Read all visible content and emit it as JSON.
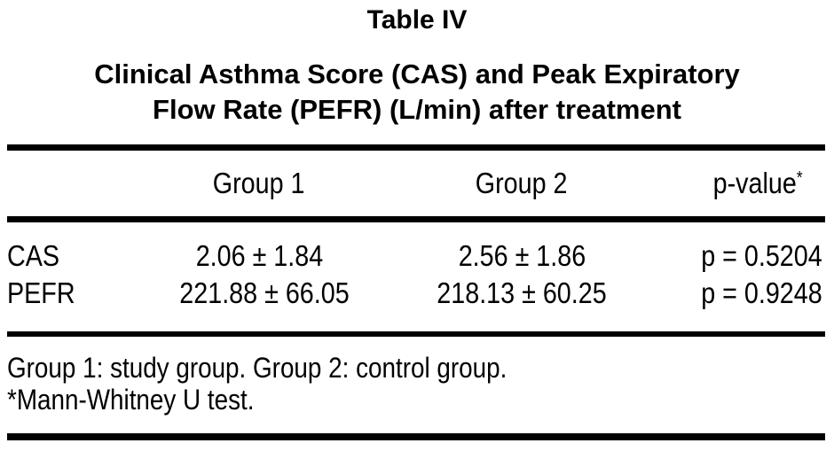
{
  "page": {
    "title": "Table IV",
    "subtitle_line1": "Clinical Asthma Score (CAS) and Peak Expiratory",
    "subtitle_line2": "Flow Rate (PEFR) (L/min) after treatment"
  },
  "table": {
    "columns": {
      "col1": "",
      "col2": "Group 1",
      "col3": "Group 2",
      "col4": "p-value",
      "col4_sup": "*"
    },
    "rows": [
      {
        "label": "CAS",
        "group1": "2.06 ± 1.84",
        "group2": "2.56 ± 1.86",
        "p": "p = 0.5204"
      },
      {
        "label": "PEFR",
        "group1": "221.88 ± 66.05",
        "group2": "218.13 ± 60.25",
        "p": "p = 0.9248"
      }
    ],
    "footnotes": {
      "line1": "Group 1: study group. Group 2: control group.",
      "line2": "*Mann-Whitney U test."
    }
  },
  "colors": {
    "text": "#000000",
    "background": "#ffffff",
    "rule": "#000000"
  },
  "chart_data": {
    "type": "table",
    "title": "Table IV",
    "subtitle": "Clinical Asthma Score (CAS) and Peak Expiratory Flow Rate (PEFR) (L/min) after treatment",
    "columns": [
      "",
      "Group 1",
      "Group 2",
      "p-value*"
    ],
    "rows": [
      [
        "CAS",
        "2.06 ± 1.84",
        "2.56 ± 1.86",
        "p = 0.5204"
      ],
      [
        "PEFR",
        "221.88 ± 66.05",
        "218.13 ± 60.25",
        "p = 0.9248"
      ]
    ],
    "values": {
      "CAS": {
        "group1_mean": 2.06,
        "group1_sd": 1.84,
        "group2_mean": 2.56,
        "group2_sd": 1.86,
        "p_value": 0.5204
      },
      "PEFR": {
        "group1_mean": 221.88,
        "group1_sd": 66.05,
        "group2_mean": 218.13,
        "group2_sd": 60.25,
        "p_value": 0.9248
      }
    },
    "notes": [
      "Group 1: study group. Group 2: control group.",
      "*Mann-Whitney U test."
    ],
    "statistical_test": "Mann-Whitney U test"
  }
}
